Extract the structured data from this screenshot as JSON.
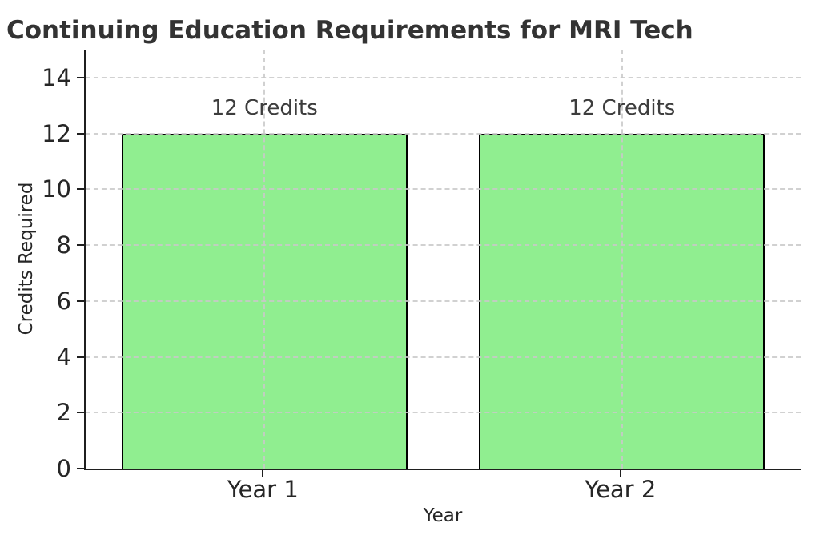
{
  "chart_data": {
    "type": "bar",
    "title": "Continuing Education Requirements for MRI Tech",
    "xlabel": "Year",
    "ylabel": "Credits Required",
    "categories": [
      "Year 1",
      "Year 2"
    ],
    "values": [
      12,
      12
    ],
    "bar_labels": [
      "12 Credits",
      "12 Credits"
    ],
    "yticks": [
      0,
      2,
      4,
      6,
      8,
      10,
      12,
      14
    ],
    "ylim": [
      0,
      15
    ],
    "bar_width_fraction": 0.8,
    "grid": true,
    "grid_style": "dashed",
    "legend": "none",
    "colors": {
      "bar_fill": "#90EE90",
      "bar_edge": "#000000",
      "grid": "#c9c9c9",
      "spine": "#1f1f1f",
      "tick_text": "#262626",
      "title_text": "#333333",
      "annotation_text": "#3d3d3d",
      "background": "#ffffff"
    }
  }
}
